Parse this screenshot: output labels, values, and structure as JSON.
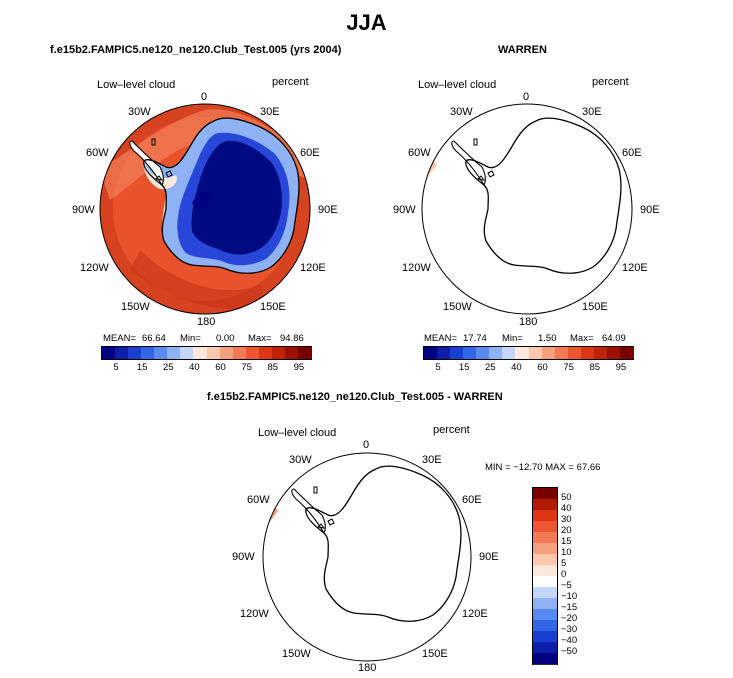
{
  "page": {
    "title": "JJA",
    "diff_title": "f.e15b2.FAMPIC5.ne120_ne120.Club_Test.005 - WARREN"
  },
  "panels": [
    {
      "title": "f.e15b2.FAMPIC5.ne120_ne120.Club_Test.005 (yrs 2004)",
      "variable": "Low–level cloud",
      "units": "percent",
      "mean_label": "MEAN=",
      "mean_value": "66.64",
      "min_label": "Min=",
      "min_value": "0.00",
      "max_label": "Max=",
      "max_value": "94.86"
    },
    {
      "title": "WARREN",
      "variable": "Low–level cloud",
      "units": "percent",
      "mean_label": "MEAN=",
      "mean_value": "17.74",
      "min_label": "Min=",
      "min_value": "1.50",
      "max_label": "Max=",
      "max_value": "64.09"
    },
    {
      "variable": "Low–level cloud",
      "units": "percent",
      "minmax": "MIN = −12.70 MAX =  67.66"
    }
  ],
  "lon_labels": [
    "0",
    "30E",
    "60E",
    "90E",
    "120E",
    "150E",
    "180",
    "150W",
    "120W",
    "90W",
    "60W",
    "30W"
  ],
  "colorbar": {
    "ticks": [
      "5",
      "15",
      "25",
      "40",
      "60",
      "75",
      "85",
      "95"
    ],
    "colors": [
      "#000080",
      "#0d1fa8",
      "#1a3ed0",
      "#3366e6",
      "#5a8af0",
      "#8fb2f5",
      "#c4d7fa",
      "#fbe9df",
      "#fbc7ad",
      "#f6a07f",
      "#f27a55",
      "#ee5532",
      "#de3515",
      "#c02204",
      "#9c1000",
      "#7a0000"
    ]
  },
  "diff_colorbar": {
    "labels": [
      "50",
      "40",
      "30",
      "20",
      "15",
      "10",
      "5",
      "0",
      "−5",
      "−10",
      "−15",
      "−20",
      "−30",
      "−40",
      "−50"
    ],
    "colors": [
      "#7a0000",
      "#b01a00",
      "#de3515",
      "#ee5532",
      "#f27a55",
      "#f6a07f",
      "#fbc7ad",
      "#fde9dc",
      "#ffffff",
      "#c4d7fa",
      "#8fb2f5",
      "#5a8af0",
      "#3366e6",
      "#1a3ed0",
      "#0d1fa8",
      "#000080"
    ]
  }
}
